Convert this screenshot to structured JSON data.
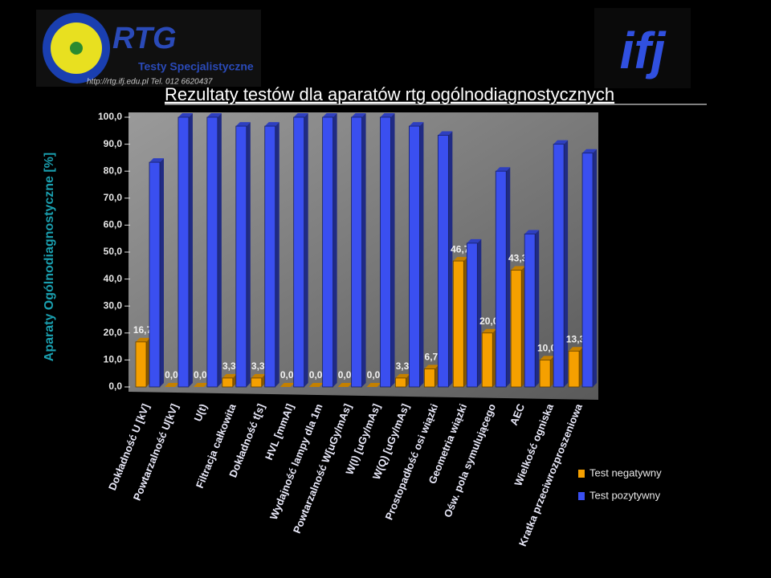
{
  "slide": {
    "logo_title": "RTG",
    "logo_subtitle": "Testy Specjalistyczne",
    "logo_contact": "http://rtg.ifj.edu.pl   Tel. 012 6620437",
    "logo_right": "ifj"
  },
  "chart_data": {
    "type": "bar",
    "title": "Rezultaty testów dla aparatów rtg ogólnodiagnostycznych",
    "y_label": "Aparaty Ogólnodiagnostyczne [%]",
    "categories": [
      "Dokładność U [kV]",
      "Powtarzalność U[kV]",
      "U(t)",
      "Filtracja całkowita",
      "Dokładność t[s]",
      "HVL [mmAl]",
      "Wydajność lampy dla 1m",
      "Powtarzalność W[uGy/mAs]",
      "W(I) [uGy/mAs]",
      "W(Q) [uGy/mAs]",
      "Prostopadłość osi wiązki",
      "Geometria wiązki",
      "Ośw. pola symulującego",
      "AEC",
      "Wielkość ogniska",
      "Kratka przeciwrozproszeniowa"
    ],
    "series": [
      {
        "name": "Test negatywny",
        "color": "#f5a000",
        "values": [
          16.7,
          0,
          0,
          3.3,
          3.3,
          0,
          0,
          0,
          0,
          3.3,
          6.7,
          46.7,
          20.0,
          43.3,
          10.0,
          13.3
        ],
        "value_labels": [
          "16,7",
          "0,0",
          "0,0",
          "3,3",
          "3,3",
          "0,0",
          "0,0",
          "0,0",
          "0,0",
          "3,3",
          "6,7",
          "46,7",
          "20,0",
          "43,3",
          "10,0",
          "13,3"
        ]
      },
      {
        "name": "Test pozytywny",
        "color": "#3a4ff0",
        "values": [
          83.3,
          100,
          100,
          96.7,
          96.7,
          100,
          100,
          100,
          100,
          96.7,
          93.3,
          53.3,
          80.0,
          56.7,
          90.0,
          86.7
        ]
      }
    ],
    "ylim": [
      0,
      100
    ],
    "yticks": [
      {
        "value": 0,
        "label": "0,0"
      },
      {
        "value": 10,
        "label": "10,0"
      },
      {
        "value": 20,
        "label": "20,0"
      },
      {
        "value": 30,
        "label": "30,0"
      },
      {
        "value": 40,
        "label": "40,0"
      },
      {
        "value": 50,
        "label": "50,0"
      },
      {
        "value": 60,
        "label": "60,0"
      },
      {
        "value": 70,
        "label": "70,0"
      },
      {
        "value": 80,
        "label": "80,0"
      },
      {
        "value": 90,
        "label": "90,0"
      },
      {
        "value": 100,
        "label": "100,0"
      }
    ],
    "legend": "bottom-right"
  }
}
